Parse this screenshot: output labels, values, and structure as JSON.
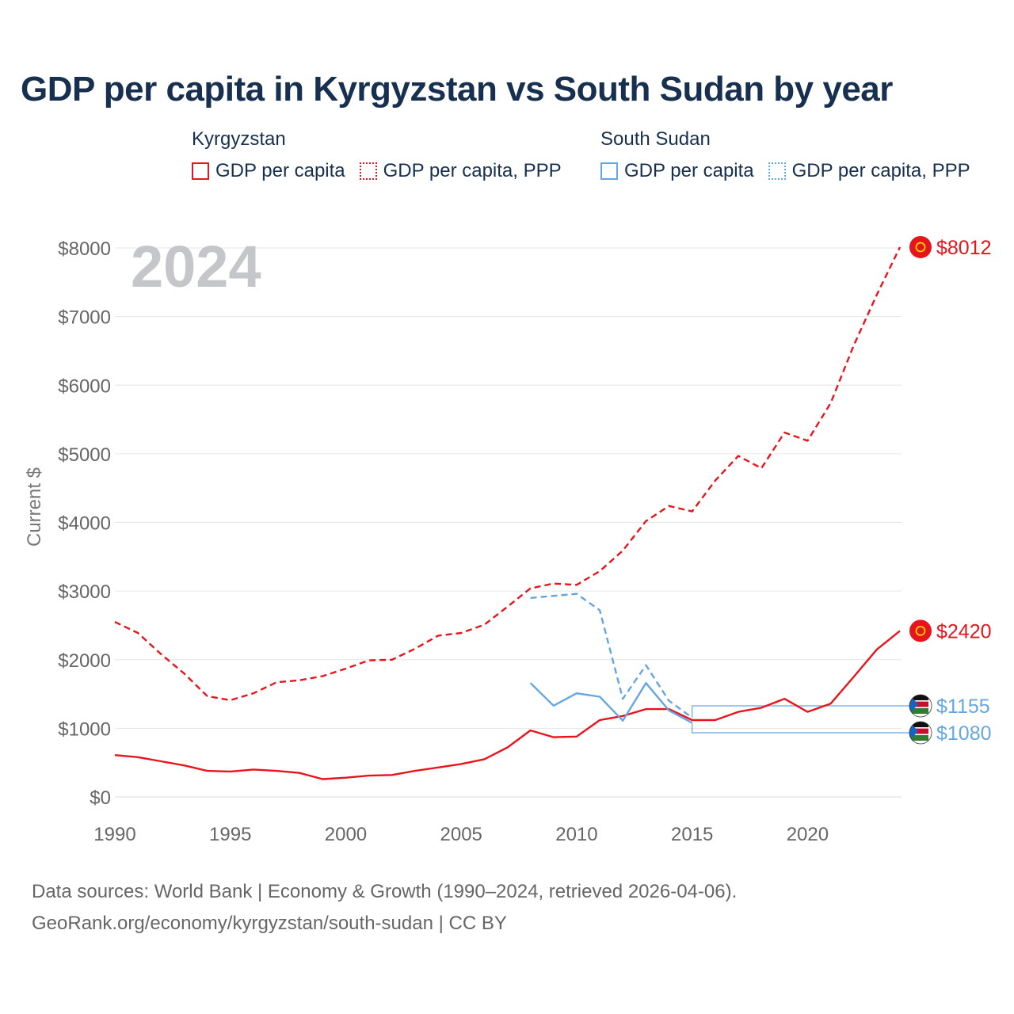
{
  "title": "GDP per capita in Kyrgyzstan vs South Sudan by year",
  "legend": [
    {
      "group": "Kyrgyzstan",
      "color": "#e8141b",
      "items": [
        {
          "label": "GDP per capita",
          "style": "solid"
        },
        {
          "label": "GDP per capita, PPP",
          "style": "dotted"
        }
      ]
    },
    {
      "group": "South Sudan",
      "color": "#64a6e3",
      "items": [
        {
          "label": "GDP per capita",
          "style": "solid"
        },
        {
          "label": "GDP per capita, PPP",
          "style": "dotted"
        }
      ]
    }
  ],
  "year_watermark": "2024",
  "footer": {
    "line1": "Data sources: World Bank | Economy & Growth (1990–2024, retrieved 2026-04-06).",
    "line2": "GeoRank.org/economy/kyrgyzstan/south-sudan | CC BY"
  },
  "chart_data": {
    "type": "line",
    "title": "GDP per capita in Kyrgyzstan vs South Sudan by year",
    "xlabel": "",
    "ylabel": "Current $",
    "xlim": [
      1990,
      2024
    ],
    "ylim": [
      0,
      8000
    ],
    "x_ticks": [
      1990,
      1995,
      2000,
      2005,
      2010,
      2015,
      2020
    ],
    "x_tick_labels": [
      "1990",
      "1995",
      "2000",
      "2005",
      "2010",
      "2015",
      "2020"
    ],
    "y_ticks": [
      0,
      1000,
      2000,
      3000,
      4000,
      5000,
      6000,
      7000,
      8000
    ],
    "y_tick_labels": [
      "$0",
      "$1000",
      "$2000",
      "$3000",
      "$4000",
      "$5000",
      "$6000",
      "$7000",
      "$8000"
    ],
    "grid": true,
    "series": [
      {
        "name": "Kyrgyzstan GDP per capita, PPP",
        "country": "Kyrgyzstan",
        "color": "#e8141b",
        "dash": true,
        "x": [
          1990,
          1991,
          1992,
          1993,
          1994,
          1995,
          1996,
          1997,
          1998,
          1999,
          2000,
          2001,
          2002,
          2003,
          2004,
          2005,
          2006,
          2007,
          2008,
          2009,
          2010,
          2011,
          2012,
          2013,
          2014,
          2015,
          2016,
          2017,
          2018,
          2019,
          2020,
          2021,
          2022,
          2023,
          2024
        ],
        "values": [
          2550,
          2390,
          2080,
          1800,
          1470,
          1410,
          1510,
          1670,
          1700,
          1760,
          1870,
          1990,
          2000,
          2160,
          2350,
          2390,
          2510,
          2770,
          3040,
          3110,
          3090,
          3290,
          3590,
          4020,
          4240,
          4160,
          4610,
          4970,
          4790,
          5310,
          5190,
          5740,
          6580,
          7320,
          8012
        ],
        "end_label": "$8012"
      },
      {
        "name": "Kyrgyzstan GDP per capita",
        "country": "Kyrgyzstan",
        "color": "#e8141b",
        "dash": false,
        "x": [
          1990,
          1991,
          1992,
          1993,
          1994,
          1995,
          1996,
          1997,
          1998,
          1999,
          2000,
          2001,
          2002,
          2003,
          2004,
          2005,
          2006,
          2007,
          2008,
          2009,
          2010,
          2011,
          2012,
          2013,
          2014,
          2015,
          2016,
          2017,
          2018,
          2019,
          2020,
          2021,
          2022,
          2023,
          2024
        ],
        "values": [
          610,
          580,
          520,
          460,
          380,
          370,
          400,
          380,
          350,
          260,
          280,
          310,
          320,
          380,
          430,
          480,
          550,
          720,
          970,
          870,
          880,
          1120,
          1180,
          1280,
          1280,
          1120,
          1120,
          1240,
          1300,
          1430,
          1240,
          1360,
          1750,
          2150,
          2420
        ],
        "end_label": "$2420"
      },
      {
        "name": "South Sudan GDP per capita, PPP",
        "country": "South Sudan",
        "color": "#64a6e3",
        "dash": true,
        "x": [
          2008,
          2009,
          2010,
          2011,
          2012,
          2013,
          2014,
          2015
        ],
        "values": [
          2900,
          2930,
          2960,
          2720,
          1430,
          1920,
          1400,
          1155
        ],
        "end_label": "$1155"
      },
      {
        "name": "South Sudan GDP per capita",
        "country": "South Sudan",
        "color": "#64a6e3",
        "dash": false,
        "x": [
          2008,
          2009,
          2010,
          2011,
          2012,
          2013,
          2014,
          2015
        ],
        "values": [
          1660,
          1330,
          1510,
          1460,
          1110,
          1660,
          1260,
          1080
        ],
        "end_label": "$1080"
      }
    ]
  }
}
